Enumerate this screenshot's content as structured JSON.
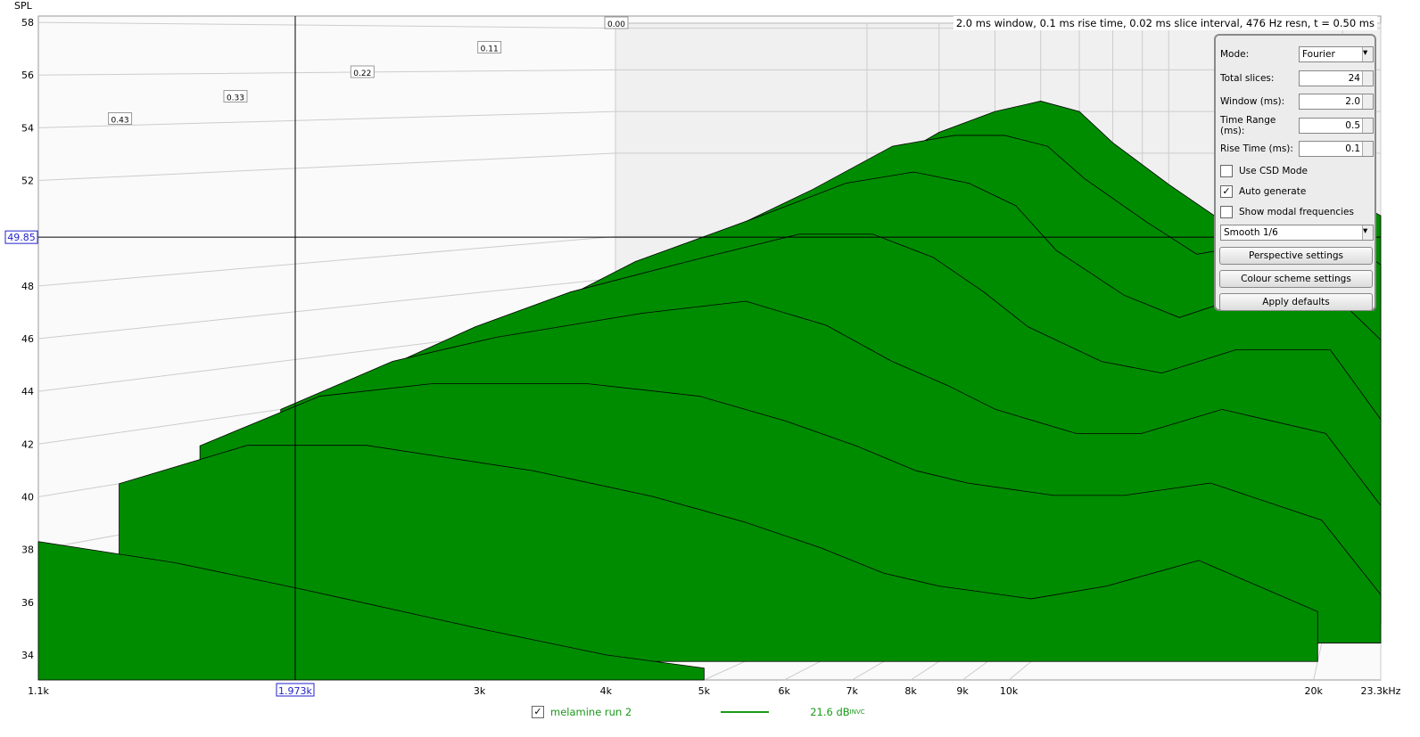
{
  "chart_data": {
    "type": "waterfall",
    "y_label": "SPL",
    "header": "2.0 ms window, 0.1 ms rise time, 0.02 ms slice interval, 476 Hz resn, t = 0.50 ms",
    "xlim": [
      1100,
      23300
    ],
    "xticks": [
      {
        "value": 1100,
        "label": "1.1k"
      },
      {
        "value": 3000,
        "label": "3k"
      },
      {
        "value": 4000,
        "label": "4k"
      },
      {
        "value": 5000,
        "label": "5k"
      },
      {
        "value": 6000,
        "label": "6k"
      },
      {
        "value": 7000,
        "label": "7k"
      },
      {
        "value": 8000,
        "label": "8k"
      },
      {
        "value": 9000,
        "label": "9k"
      },
      {
        "value": 10000,
        "label": "10k"
      },
      {
        "value": 20000,
        "label": "20k"
      },
      {
        "value": 23300,
        "label": "23.3kHz"
      }
    ],
    "ylim": [
      33.05,
      58.24
    ],
    "yticks": [
      34,
      36,
      38,
      40,
      42,
      44,
      46,
      48,
      52,
      54,
      56,
      58
    ],
    "tlim": [
      0,
      0.5
    ],
    "time_ticks": [
      {
        "value": 0,
        "label": "0.00"
      },
      0.11,
      0.22,
      0.33,
      0.43
    ],
    "cursor": {
      "x": {
        "value": 1973,
        "label": "1.973k"
      },
      "y": 49.85
    },
    "color": "#008c00",
    "frequencies": [
      1100,
      1500,
      2000,
      3000,
      4000,
      5000,
      6000,
      7000,
      8000,
      10000,
      12000,
      15000,
      20000,
      23300
    ],
    "slices": [
      {
        "t": 0,
        "values": [
          44,
          46,
          48.5,
          51,
          53,
          54,
          54.5,
          54,
          52.5,
          50.5,
          49,
          49.5,
          50,
          49
        ]
      },
      {
        "t": 0.07,
        "values": [
          44,
          46,
          48,
          50.5,
          52.5,
          53,
          53,
          52.5,
          51,
          49,
          47.5,
          48,
          48.5,
          47
        ]
      },
      {
        "t": 0.14,
        "values": [
          43.5,
          45.5,
          47.5,
          49.5,
          51,
          51.5,
          51,
          50,
          48,
          46,
          45,
          46,
          46,
          44
        ]
      },
      {
        "t": 0.21,
        "values": [
          43,
          45,
          46.5,
          48,
          49,
          49,
          48,
          46.5,
          45,
          43.5,
          43,
          44,
          44,
          41
        ]
      },
      {
        "t": 0.29,
        "values": [
          42,
          44,
          45,
          46,
          46.5,
          45.5,
          44,
          43,
          42,
          41,
          41,
          42,
          41,
          38
        ]
      },
      {
        "t": 0.36,
        "values": [
          41,
          43,
          43.5,
          43.5,
          43,
          42,
          41,
          40,
          39.5,
          39,
          39,
          39.5,
          38,
          35
        ]
      },
      {
        "t": 0.43,
        "values": [
          40,
          41.5,
          41.5,
          40.5,
          39.5,
          38.5,
          37.5,
          36.5,
          36,
          35.5,
          36,
          37,
          35,
          null
        ]
      },
      {
        "t": 0.5,
        "values": [
          38.3,
          37.5,
          36.5,
          35,
          34,
          33.5,
          null,
          null,
          null,
          null,
          null,
          null,
          null,
          null
        ]
      }
    ],
    "legend": {
      "name": "melamine run 2",
      "checked": true,
      "smoothing": "21.6 dB",
      "superscript": "INVC"
    }
  },
  "controls": {
    "mode_label": "Mode:",
    "mode": "Fourier",
    "slices_label": "Total slices:",
    "slices": 24,
    "window_label": "Window (ms):",
    "window": "2.0",
    "range_label": "Time Range (ms):",
    "range": 0.5,
    "rise_label": "Rise Time (ms):",
    "rise": 0.1,
    "checkboxes": [
      {
        "label": "Use CSD Mode",
        "checked": false
      },
      {
        "label": "Auto generate",
        "checked": true
      },
      {
        "label": "Show modal frequencies",
        "checked": false
      }
    ],
    "smoothing": "Smooth 1/6",
    "buttons": [
      "Perspective settings",
      "Colour scheme settings",
      "Apply defaults"
    ]
  }
}
